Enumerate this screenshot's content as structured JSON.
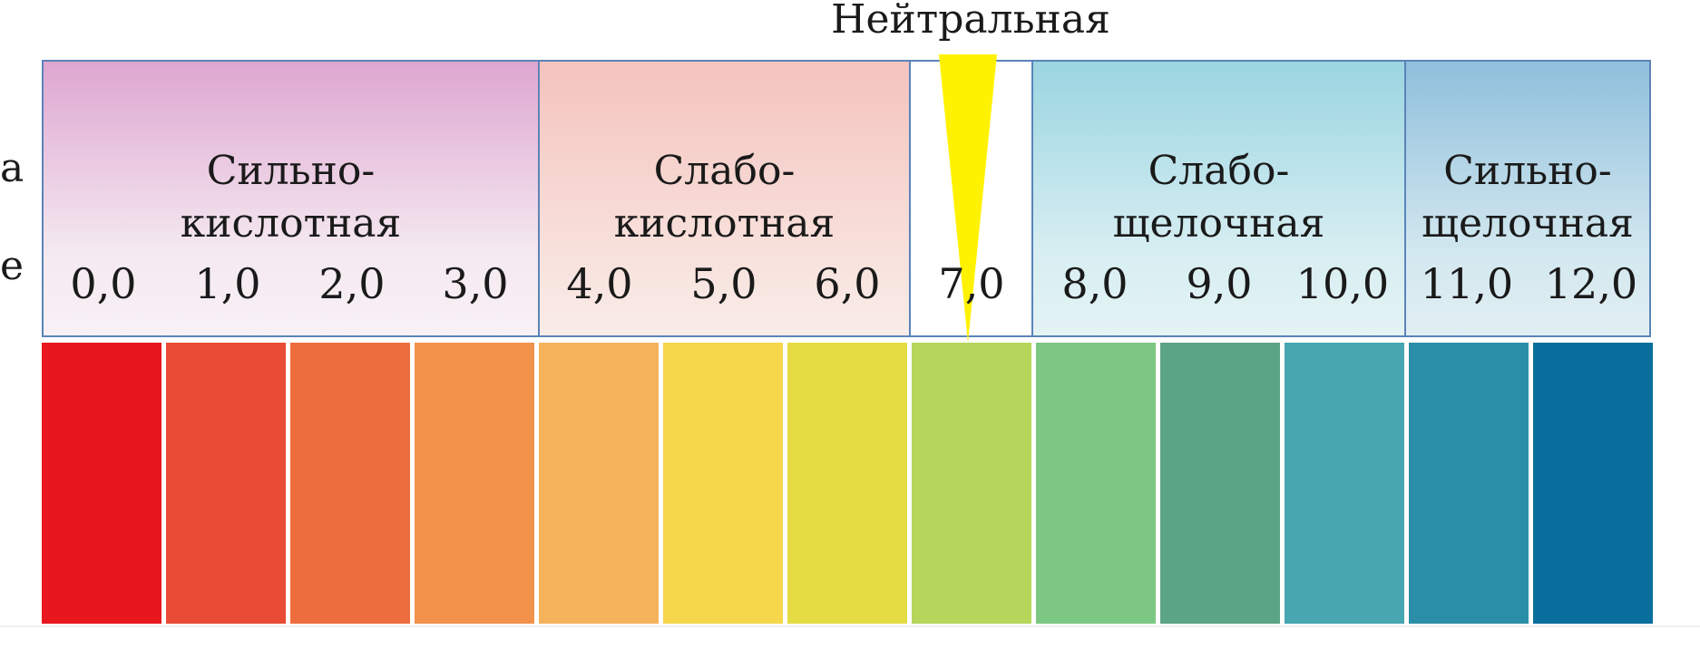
{
  "neutral_label": "Нейтральная",
  "cut_letters": [
    "а",
    "е"
  ],
  "zones": [
    {
      "key": "strong_acid",
      "label": "Сильно-\nкислотная"
    },
    {
      "key": "weak_acid",
      "label": "Слабо-\nкислотная"
    },
    {
      "key": "weak_base",
      "label": "Слабо-\nщелочная"
    },
    {
      "key": "strong_base",
      "label": "Сильно-\nщелочная"
    }
  ],
  "ph_values": [
    "0,0",
    "1,0",
    "2,0",
    "3,0",
    "4,0",
    "5,0",
    "6,0",
    "7,0",
    "8,0",
    "9,0",
    "10,0",
    "11,0",
    "12,0"
  ],
  "swatch_colors": [
    "#e8171e",
    "#ea4b35",
    "#ee6d3e",
    "#f1914a",
    "#f7b35c",
    "#f6d64a",
    "#e4dc42",
    "#b5d65b",
    "#7cc783",
    "#5ca486",
    "#47a6b0",
    "#2b8ea8",
    "#0a6f9c"
  ],
  "needle_color": "#fff200"
}
